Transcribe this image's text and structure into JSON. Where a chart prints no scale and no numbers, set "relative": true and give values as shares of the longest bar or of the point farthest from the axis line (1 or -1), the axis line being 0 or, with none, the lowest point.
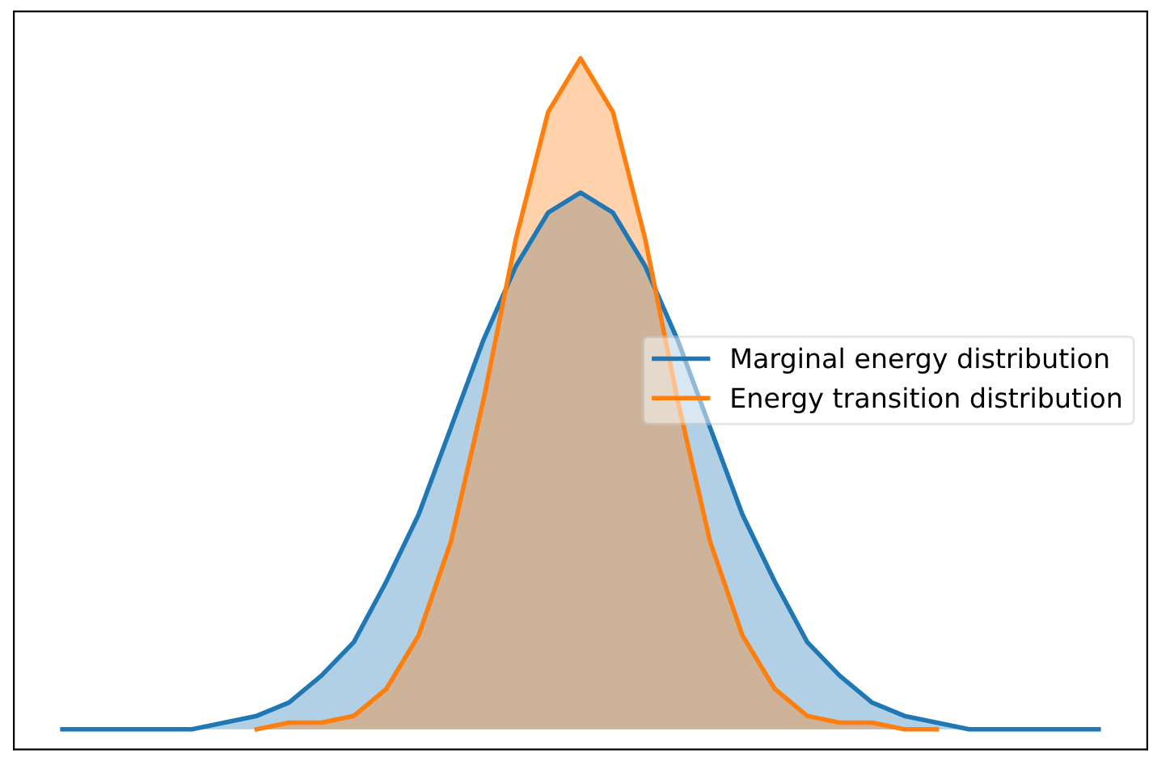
{
  "chart_data": {
    "type": "area",
    "relative": true,
    "categories": [
      null,
      null,
      null,
      null,
      null,
      null,
      null,
      null,
      null,
      null,
      null,
      null,
      null,
      null,
      null,
      null,
      null,
      null,
      null,
      null,
      null,
      null,
      null,
      null,
      null,
      null,
      null,
      null,
      null,
      null,
      null,
      null,
      null
    ],
    "series": [
      {
        "name": "Marginal energy distribution",
        "color": "#1f77b4",
        "values": [
          0,
          0,
          0,
          0,
          0,
          0.01,
          0.02,
          0.04,
          0.08,
          0.13,
          0.22,
          0.32,
          0.45,
          0.58,
          0.69,
          0.77,
          0.8,
          0.77,
          0.69,
          0.58,
          0.45,
          0.32,
          0.22,
          0.13,
          0.08,
          0.04,
          0.02,
          0.01,
          0,
          0,
          0,
          0,
          0
        ]
      },
      {
        "name": "Energy transition distribution",
        "color": "#ff7f0e",
        "values": [
          null,
          null,
          null,
          null,
          null,
          null,
          0,
          0.01,
          0.01,
          0.02,
          0.06,
          0.14,
          0.28,
          0.49,
          0.73,
          0.92,
          1.0,
          0.92,
          0.73,
          0.49,
          0.28,
          0.14,
          0.06,
          0.02,
          0.01,
          0.01,
          0,
          0,
          null,
          null,
          null,
          null,
          null
        ]
      }
    ],
    "legend": "center right",
    "tick_labels": false
  }
}
